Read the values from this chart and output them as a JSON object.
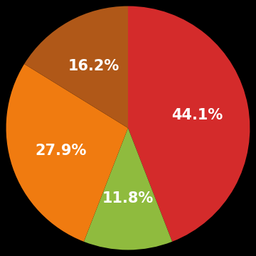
{
  "values": [
    44.1,
    11.8,
    27.9,
    16.2
  ],
  "colors": [
    "#d42b2b",
    "#8fbb3e",
    "#f07b10",
    "#b05818"
  ],
  "labels": [
    "44.1%",
    "11.8%",
    "27.9%",
    "16.2%"
  ],
  "startangle": 90,
  "counterclock": false,
  "background_color": "#000000",
  "text_color": "#ffffff",
  "label_fontsize": 15,
  "label_fontweight": "bold",
  "label_r": 0.58
}
